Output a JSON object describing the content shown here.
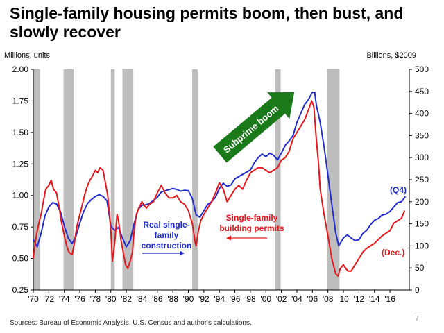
{
  "header": {
    "title": "Single-family housing permits boom, then bust, and slowly recover"
  },
  "footer": {
    "source": "Sources: Bureau of Economic Analysis, U.S. Census and author's calculations.",
    "page_number": "7"
  },
  "colors": {
    "investment_line": "#1f2ad1",
    "permits_line": "#e8161a",
    "recession_shade": "#bdbdbd",
    "arrow_fill": "#1a7a1a"
  },
  "chart_data": {
    "type": "line",
    "title": "Single-family housing permits boom, then bust, and slowly recover",
    "ylabel_left": "Millions, units",
    "ylabel_right": "Billions, $2009",
    "ylim_left": [
      0.25,
      2.0
    ],
    "ylim_right": [
      0,
      500
    ],
    "xlim": [
      1970,
      2018.5
    ],
    "y_ticks_left": [
      "0.25",
      "0.50",
      "0.75",
      "1.00",
      "1.25",
      "1.50",
      "1.75",
      "2.00"
    ],
    "y_ticks_right": [
      "0",
      "50",
      "100",
      "150",
      "200",
      "250",
      "300",
      "350",
      "400",
      "450",
      "500"
    ],
    "x_ticks": [
      "'70",
      "'72",
      "'74",
      "'76",
      "'78",
      "'80",
      "'82",
      "'84",
      "'86",
      "'88",
      "'90",
      "'92",
      "'94",
      "'96",
      "'98",
      "'00",
      "'02",
      "'04",
      "'06",
      "'08",
      "'10",
      "'12",
      "'14",
      "'16"
    ],
    "recessions": [
      [
        1970.0,
        1970.9
      ],
      [
        1973.9,
        1975.2
      ],
      [
        1980.0,
        1980.5
      ],
      [
        1981.5,
        1982.9
      ],
      [
        1990.5,
        1991.2
      ],
      [
        2001.2,
        2001.9
      ],
      [
        2007.9,
        2009.5
      ]
    ],
    "series": [
      {
        "name": "Real single-family construction",
        "axis": "right",
        "color": "#1f2ad1",
        "x": [
          1970.0,
          1970.5,
          1971.0,
          1971.5,
          1972.0,
          1972.5,
          1973.0,
          1973.5,
          1974.0,
          1974.5,
          1975.0,
          1975.5,
          1976.0,
          1976.5,
          1977.0,
          1977.5,
          1978.0,
          1978.5,
          1979.0,
          1979.5,
          1980.0,
          1980.5,
          1981.0,
          1981.5,
          1982.0,
          1982.5,
          1983.0,
          1983.5,
          1984.0,
          1984.5,
          1985.0,
          1986.0,
          1986.5,
          1987.0,
          1988.0,
          1988.5,
          1989.0,
          1989.5,
          1990.0,
          1990.5,
          1991.0,
          1991.5,
          1992.0,
          1992.5,
          1993.0,
          1993.5,
          1994.0,
          1994.5,
          1995.0,
          1995.5,
          1996.0,
          1997.0,
          1998.0,
          1998.5,
          1999.0,
          1999.5,
          2000.0,
          2000.5,
          2001.0,
          2001.5,
          2002.0,
          2002.5,
          2003.0,
          2003.5,
          2004.0,
          2004.5,
          2005.0,
          2005.5,
          2006.0,
          2006.3,
          2006.5,
          2007.0,
          2007.5,
          2008.0,
          2008.5,
          2009.0,
          2009.4,
          2009.8,
          2010.0,
          2010.5,
          2011.0,
          2011.5,
          2012.0,
          2012.5,
          2013.0,
          2013.5,
          2014.0,
          2014.5,
          2015.0,
          2015.5,
          2016.0,
          2016.5,
          2017.0,
          2017.5,
          2018.0
        ],
        "values": [
          115,
          98,
          128,
          168,
          188,
          198,
          195,
          178,
          145,
          118,
          105,
          122,
          152,
          178,
          196,
          205,
          212,
          216,
          212,
          202,
          145,
          135,
          142,
          118,
          98,
          112,
          150,
          182,
          192,
          193,
          196,
          210,
          222,
          225,
          230,
          228,
          224,
          226,
          225,
          208,
          170,
          165,
          180,
          194,
          200,
          210,
          230,
          242,
          235,
          238,
          252,
          262,
          272,
          288,
          300,
          308,
          302,
          310,
          305,
          295,
          310,
          328,
          338,
          350,
          380,
          400,
          420,
          432,
          448,
          448,
          420,
          380,
          325,
          260,
          195,
          130,
          100,
          112,
          118,
          125,
          118,
          112,
          114,
          128,
          135,
          148,
          158,
          162,
          170,
          172,
          178,
          188,
          198,
          200,
          212
        ]
      },
      {
        "name": "Single-family building permits",
        "axis": "left",
        "color": "#e8161a",
        "x": [
          1970.0,
          1970.3,
          1970.6,
          1971.0,
          1971.3,
          1971.6,
          1972.0,
          1972.3,
          1972.6,
          1973.0,
          1973.3,
          1973.6,
          1974.0,
          1974.3,
          1974.6,
          1975.0,
          1975.3,
          1975.6,
          1976.0,
          1976.3,
          1976.6,
          1977.0,
          1977.3,
          1977.6,
          1978.0,
          1978.3,
          1978.6,
          1979.0,
          1979.3,
          1979.6,
          1980.0,
          1980.2,
          1980.5,
          1980.8,
          1981.0,
          1981.3,
          1981.6,
          1981.9,
          1982.2,
          1982.5,
          1982.8,
          1983.0,
          1983.3,
          1983.6,
          1984.0,
          1984.3,
          1984.6,
          1985.0,
          1985.5,
          1986.0,
          1986.5,
          1987.0,
          1987.5,
          1988.0,
          1988.5,
          1989.0,
          1989.5,
          1990.0,
          1990.5,
          1990.9,
          1991.0,
          1991.3,
          1991.6,
          1992.0,
          1992.5,
          1993.0,
          1993.5,
          1994.0,
          1994.5,
          1995.0,
          1995.5,
          1996.0,
          1996.5,
          1997.0,
          1997.5,
          1998.0,
          1998.5,
          1999.0,
          1999.5,
          2000.0,
          2000.5,
          2001.0,
          2001.5,
          2002.0,
          2002.5,
          2003.0,
          2003.5,
          2004.0,
          2004.5,
          2005.0,
          2005.5,
          2005.9,
          2006.2,
          2006.5,
          2006.8,
          2007.0,
          2007.5,
          2008.0,
          2008.5,
          2009.0,
          2009.3,
          2009.6,
          2010.0,
          2010.3,
          2010.6,
          2011.0,
          2011.5,
          2012.0,
          2012.5,
          2013.0,
          2013.5,
          2014.0,
          2014.5,
          2015.0,
          2015.5,
          2016.0,
          2016.5,
          2017.0,
          2017.5,
          2017.9
        ],
        "values": [
          0.5,
          0.65,
          0.75,
          0.85,
          0.95,
          1.05,
          1.08,
          1.12,
          1.05,
          1.02,
          0.92,
          0.8,
          0.68,
          0.6,
          0.55,
          0.53,
          0.62,
          0.75,
          0.85,
          0.92,
          1.0,
          1.08,
          1.12,
          1.15,
          1.2,
          1.18,
          1.22,
          1.2,
          1.1,
          1.0,
          0.72,
          0.48,
          0.62,
          0.85,
          0.8,
          0.65,
          0.55,
          0.45,
          0.42,
          0.48,
          0.55,
          0.72,
          0.85,
          0.9,
          0.95,
          0.92,
          0.9,
          0.93,
          0.95,
          1.02,
          1.08,
          1.02,
          0.98,
          0.98,
          1.0,
          0.95,
          0.93,
          0.88,
          0.78,
          0.62,
          0.6,
          0.72,
          0.8,
          0.85,
          0.9,
          0.95,
          1.02,
          1.1,
          1.05,
          0.95,
          1.0,
          1.05,
          1.08,
          1.05,
          1.12,
          1.18,
          1.2,
          1.22,
          1.22,
          1.2,
          1.18,
          1.2,
          1.22,
          1.28,
          1.3,
          1.35,
          1.45,
          1.5,
          1.55,
          1.6,
          1.68,
          1.75,
          1.7,
          1.45,
          1.25,
          1.05,
          0.85,
          0.68,
          0.5,
          0.38,
          0.36,
          0.42,
          0.45,
          0.42,
          0.4,
          0.4,
          0.45,
          0.5,
          0.55,
          0.58,
          0.6,
          0.62,
          0.65,
          0.68,
          0.7,
          0.72,
          0.78,
          0.8,
          0.82,
          0.88
        ]
      }
    ],
    "annotations": {
      "arrow_label": "Subprime boom",
      "blue_label": [
        "Real single-",
        "family",
        "construction"
      ],
      "red_label": [
        "Single-family",
        "building permits"
      ],
      "q4_label": "(Q4)",
      "dec_label": "(Dec.)"
    }
  }
}
